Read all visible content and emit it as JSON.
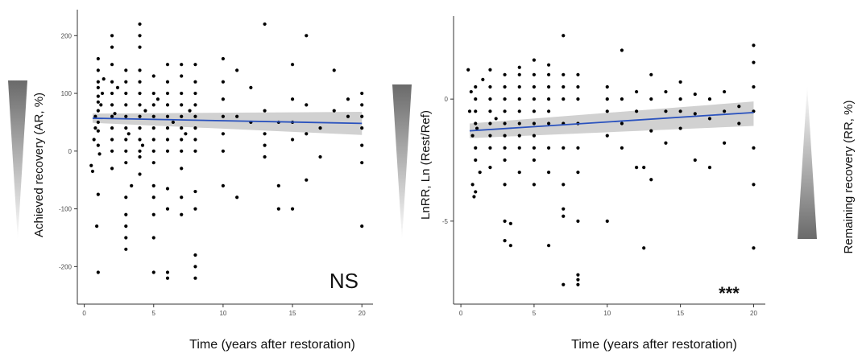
{
  "chart_data": [
    {
      "type": "scatter",
      "ylabel": "Achieved recovery (AR, %)",
      "xlabel": "Time (years after restoration)",
      "xticks": [
        0,
        5,
        10,
        15,
        20
      ],
      "yticks": [
        -200,
        -100,
        0,
        100,
        200
      ],
      "xlim": [
        -0.5,
        20.8
      ],
      "ylim": [
        -265,
        245
      ],
      "annotation": "NS",
      "grid": false,
      "trend": {
        "x": [
          0.6,
          20
        ],
        "y": [
          57,
          48
        ],
        "ci_low": [
          49,
          28
        ],
        "ci_high": [
          65,
          68
        ]
      },
      "points": [
        [
          0.5,
          -25
        ],
        [
          0.6,
          -35
        ],
        [
          0.7,
          20
        ],
        [
          0.8,
          60
        ],
        [
          0.8,
          40
        ],
        [
          0.9,
          -130
        ],
        [
          1,
          -210
        ],
        [
          1,
          -75
        ],
        [
          1,
          10
        ],
        [
          1,
          35
        ],
        [
          1,
          50
        ],
        [
          1,
          70
        ],
        [
          1,
          85
        ],
        [
          1,
          95
        ],
        [
          1,
          110
        ],
        [
          1,
          120
        ],
        [
          1,
          140
        ],
        [
          1,
          160
        ],
        [
          1.1,
          -5
        ],
        [
          1.2,
          80
        ],
        [
          1.3,
          100
        ],
        [
          1.4,
          125
        ],
        [
          2,
          -30
        ],
        [
          2,
          0
        ],
        [
          2,
          20
        ],
        [
          2,
          40
        ],
        [
          2,
          60
        ],
        [
          2,
          80
        ],
        [
          2,
          100
        ],
        [
          2,
          120
        ],
        [
          2,
          150
        ],
        [
          2,
          180
        ],
        [
          2,
          200
        ],
        [
          2.2,
          65
        ],
        [
          2.4,
          110
        ],
        [
          3,
          -80
        ],
        [
          3,
          -110
        ],
        [
          3,
          -130
        ],
        [
          3,
          -150
        ],
        [
          3,
          -170
        ],
        [
          3,
          -20
        ],
        [
          3,
          0
        ],
        [
          3,
          20
        ],
        [
          3,
          40
        ],
        [
          3,
          60
        ],
        [
          3,
          80
        ],
        [
          3,
          100
        ],
        [
          3,
          120
        ],
        [
          3,
          140
        ],
        [
          3.2,
          30
        ],
        [
          3.4,
          -60
        ],
        [
          4,
          -40
        ],
        [
          4,
          -10
        ],
        [
          4,
          0
        ],
        [
          4,
          20
        ],
        [
          4,
          40
        ],
        [
          4,
          60
        ],
        [
          4,
          80
        ],
        [
          4,
          100
        ],
        [
          4,
          120
        ],
        [
          4,
          140
        ],
        [
          4,
          180
        ],
        [
          4,
          200
        ],
        [
          4,
          220
        ],
        [
          4.2,
          10
        ],
        [
          4.4,
          70
        ],
        [
          5,
          -60
        ],
        [
          5,
          -110
        ],
        [
          5,
          -150
        ],
        [
          5,
          -210
        ],
        [
          5,
          -80
        ],
        [
          5,
          -20
        ],
        [
          5,
          0
        ],
        [
          5,
          20
        ],
        [
          5,
          40
        ],
        [
          5,
          60
        ],
        [
          5,
          80
        ],
        [
          5,
          100
        ],
        [
          5,
          130
        ],
        [
          5.3,
          90
        ],
        [
          6,
          -100
        ],
        [
          6,
          -210
        ],
        [
          6,
          -220
        ],
        [
          6,
          -65
        ],
        [
          6,
          0
        ],
        [
          6,
          20
        ],
        [
          6,
          40
        ],
        [
          6,
          60
        ],
        [
          6,
          80
        ],
        [
          6,
          100
        ],
        [
          6,
          120
        ],
        [
          6,
          150
        ],
        [
          6.4,
          50
        ],
        [
          7,
          -30
        ],
        [
          7,
          -80
        ],
        [
          7,
          -110
        ],
        [
          7,
          0
        ],
        [
          7,
          20
        ],
        [
          7,
          40
        ],
        [
          7,
          60
        ],
        [
          7,
          80
        ],
        [
          7,
          100
        ],
        [
          7,
          130
        ],
        [
          7,
          150
        ],
        [
          7.3,
          30
        ],
        [
          7.6,
          70
        ],
        [
          8,
          -70
        ],
        [
          8,
          -180
        ],
        [
          8,
          -200
        ],
        [
          8,
          -220
        ],
        [
          8,
          -100
        ],
        [
          8,
          0
        ],
        [
          8,
          20
        ],
        [
          8,
          40
        ],
        [
          8,
          60
        ],
        [
          8,
          80
        ],
        [
          8,
          100
        ],
        [
          8,
          120
        ],
        [
          8,
          150
        ],
        [
          10,
          -60
        ],
        [
          10,
          0
        ],
        [
          10,
          30
        ],
        [
          10,
          60
        ],
        [
          10,
          90
        ],
        [
          10,
          120
        ],
        [
          10,
          160
        ],
        [
          11,
          -80
        ],
        [
          11,
          60
        ],
        [
          11,
          140
        ],
        [
          12,
          50
        ],
        [
          12,
          110
        ],
        [
          13,
          -10
        ],
        [
          13,
          10
        ],
        [
          13,
          30
        ],
        [
          13,
          70
        ],
        [
          13,
          220
        ],
        [
          14,
          -60
        ],
        [
          14,
          -100
        ],
        [
          14,
          50
        ],
        [
          15,
          -100
        ],
        [
          15,
          20
        ],
        [
          15,
          50
        ],
        [
          15,
          90
        ],
        [
          15,
          150
        ],
        [
          16,
          -50
        ],
        [
          16,
          30
        ],
        [
          16,
          80
        ],
        [
          16,
          200
        ],
        [
          17,
          -10
        ],
        [
          17,
          40
        ],
        [
          18,
          70
        ],
        [
          18,
          140
        ],
        [
          19,
          60
        ],
        [
          19,
          90
        ],
        [
          20,
          -130
        ],
        [
          20,
          -20
        ],
        [
          20,
          10
        ],
        [
          20,
          40
        ],
        [
          20,
          60
        ],
        [
          20,
          80
        ],
        [
          20,
          100
        ]
      ]
    },
    {
      "type": "scatter",
      "ylabel": "LnRR, Ln (Rest/Ref)",
      "y2label": "Remaining recovery (RR, %)",
      "xlabel": "Time (years after restoration)",
      "xticks": [
        0,
        5,
        10,
        15,
        20
      ],
      "yticks": [
        -5,
        0
      ],
      "xlim": [
        -0.5,
        20.8
      ],
      "ylim": [
        -8.4,
        3.4
      ],
      "annotation": "***",
      "grid": false,
      "trend": {
        "x": [
          0.6,
          20
        ],
        "y": [
          -1.3,
          -0.55
        ],
        "ci_low": [
          -1.6,
          -1.1
        ],
        "ci_high": [
          -1.0,
          -0.1
        ]
      },
      "points": [
        [
          0.5,
          1.2
        ],
        [
          0.6,
          -0.5
        ],
        [
          0.7,
          0.3
        ],
        [
          0.8,
          -1.5
        ],
        [
          0.8,
          -3.5
        ],
        [
          0.9,
          -4.0
        ],
        [
          1,
          -3.8
        ],
        [
          1,
          -2.5
        ],
        [
          1,
          -2.0
        ],
        [
          1,
          -1.0
        ],
        [
          1,
          -0.5
        ],
        [
          1,
          0
        ],
        [
          1,
          0.5
        ],
        [
          1.1,
          -1.2
        ],
        [
          1.3,
          -3.0
        ],
        [
          1.5,
          0.8
        ],
        [
          2,
          -2.8
        ],
        [
          2,
          -2.0
        ],
        [
          2,
          -1.5
        ],
        [
          2,
          -1.0
        ],
        [
          2,
          -0.5
        ],
        [
          2,
          0
        ],
        [
          2,
          0.5
        ],
        [
          2,
          1.2
        ],
        [
          2.4,
          -0.8
        ],
        [
          3,
          -5.0
        ],
        [
          3,
          -5.8
        ],
        [
          3,
          -3.5
        ],
        [
          3,
          -2.5
        ],
        [
          3,
          -2.0
        ],
        [
          3,
          -1.5
        ],
        [
          3,
          -1.0
        ],
        [
          3,
          -0.5
        ],
        [
          3,
          0
        ],
        [
          3,
          0.5
        ],
        [
          3,
          1.0
        ],
        [
          3.4,
          -6.0
        ],
        [
          3.4,
          -5.1
        ],
        [
          4,
          -3.0
        ],
        [
          4,
          -2.0
        ],
        [
          4,
          -1.5
        ],
        [
          4,
          -1.0
        ],
        [
          4,
          -0.5
        ],
        [
          4,
          0
        ],
        [
          4,
          0.5
        ],
        [
          4,
          1.0
        ],
        [
          4,
          1.3
        ],
        [
          5,
          -3.5
        ],
        [
          5,
          -2.5
        ],
        [
          5,
          -2.0
        ],
        [
          5,
          -1.5
        ],
        [
          5,
          -1.0
        ],
        [
          5,
          -0.5
        ],
        [
          5,
          0
        ],
        [
          5,
          0.5
        ],
        [
          5,
          1.0
        ],
        [
          5,
          1.6
        ],
        [
          6,
          -6.0
        ],
        [
          6,
          -3.0
        ],
        [
          6,
          -2.0
        ],
        [
          6,
          -1.0
        ],
        [
          6,
          -0.5
        ],
        [
          6,
          0
        ],
        [
          6,
          0.5
        ],
        [
          6,
          1.0
        ],
        [
          6,
          1.4
        ],
        [
          7,
          -7.6
        ],
        [
          7,
          -4.5
        ],
        [
          7,
          -4.8
        ],
        [
          7,
          -3.5
        ],
        [
          7,
          -2.0
        ],
        [
          7,
          -1.0
        ],
        [
          7,
          0
        ],
        [
          7,
          0.5
        ],
        [
          7,
          1.0
        ],
        [
          7,
          2.6
        ],
        [
          8,
          -7.6
        ],
        [
          8,
          -7.4
        ],
        [
          8,
          -7.2
        ],
        [
          8,
          -5.0
        ],
        [
          8,
          -3.0
        ],
        [
          8,
          -2.0
        ],
        [
          8,
          -1.0
        ],
        [
          8,
          0
        ],
        [
          8,
          0.5
        ],
        [
          8,
          1.0
        ],
        [
          10,
          -5.0
        ],
        [
          10,
          -1.5
        ],
        [
          10,
          -0.5
        ],
        [
          10,
          0
        ],
        [
          10,
          0.5
        ],
        [
          11,
          -2.0
        ],
        [
          11,
          -1.0
        ],
        [
          11,
          0
        ],
        [
          11,
          2.0
        ],
        [
          12,
          -2.8
        ],
        [
          12,
          -0.5
        ],
        [
          12,
          0.3
        ],
        [
          12.5,
          -6.1
        ],
        [
          12.5,
          -2.8
        ],
        [
          13,
          -3.3
        ],
        [
          13,
          -1.3
        ],
        [
          13,
          0
        ],
        [
          13,
          1.0
        ],
        [
          14,
          -1.8
        ],
        [
          14,
          -0.5
        ],
        [
          14,
          0.3
        ],
        [
          15,
          -1.2
        ],
        [
          15,
          -0.5
        ],
        [
          15,
          0
        ],
        [
          15,
          0.7
        ],
        [
          16,
          -2.5
        ],
        [
          16,
          -0.6
        ],
        [
          16,
          0.2
        ],
        [
          17,
          -2.8
        ],
        [
          17,
          -0.8
        ],
        [
          17,
          0
        ],
        [
          18,
          -1.8
        ],
        [
          18,
          -0.5
        ],
        [
          18,
          0.3
        ],
        [
          19,
          -1.0
        ],
        [
          19,
          -0.3
        ],
        [
          20,
          -6.1
        ],
        [
          20,
          -3.5
        ],
        [
          20,
          -2.0
        ],
        [
          20,
          -0.5
        ],
        [
          20,
          0.5
        ],
        [
          20,
          1.5
        ],
        [
          20,
          2.2
        ]
      ]
    }
  ]
}
